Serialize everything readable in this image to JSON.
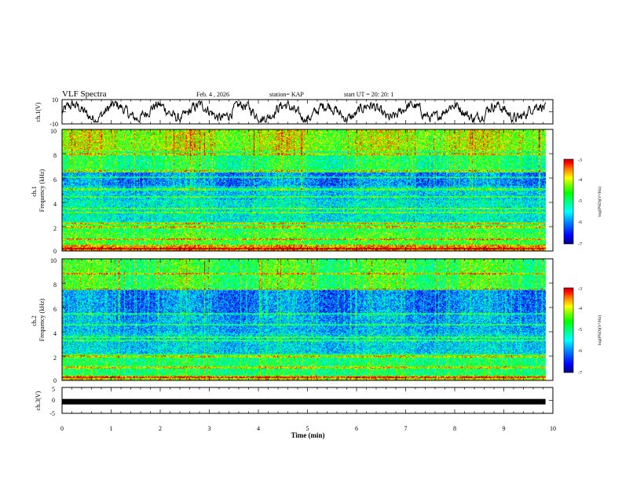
{
  "header": {
    "title": "VLF Spectra",
    "date": "Feb. 4 , 2026",
    "station": "station= KAP",
    "start_time": "start  UT =   20: 20: 1"
  },
  "colors": {
    "colormap": [
      "#000080",
      "#0000ff",
      "#0080ff",
      "#00ffff",
      "#00ff80",
      "#00ff00",
      "#80ff00",
      "#ffff00",
      "#ff8000",
      "#ff0000",
      "#c00000"
    ],
    "line": "#000000"
  },
  "chart_data": [
    {
      "type": "line",
      "name": "ch1-waveform",
      "ylabel": "ch.1(V)",
      "ylim": [
        -10,
        10
      ],
      "yticks": [
        "10",
        "-10"
      ],
      "xlim": [
        0,
        10
      ],
      "note": "noisy oscillating waveform, amplitude roughly between -7 and 7 V, trace ends near 9.8 min"
    },
    {
      "type": "heatmap",
      "name": "ch1-spectrogram",
      "ylabel": "ch.1\nFrequency (kHz)",
      "ylim": [
        0,
        10
      ],
      "yticks": [
        "0",
        "2",
        "4",
        "6",
        "8",
        "10"
      ],
      "xlim": [
        0,
        10
      ],
      "data_extent_min": 9.85,
      "colorbar": {
        "label": "log(PSD)(V²/Hz)",
        "ticks": [
          "-3",
          "-4",
          "-5",
          "-6",
          "-7"
        ],
        "range": [
          -7,
          -3
        ]
      },
      "bands": [
        {
          "f_low": 0,
          "f_high": 0.4,
          "level": -3.6
        },
        {
          "f_low": 0.4,
          "f_high": 1.6,
          "level": -4.6
        },
        {
          "f_low": 1.6,
          "f_high": 2.4,
          "level": -4.8
        },
        {
          "f_low": 2.4,
          "f_high": 4.2,
          "level": -5.4
        },
        {
          "f_low": 4.2,
          "f_high": 5.4,
          "level": -5.6
        },
        {
          "f_low": 5.4,
          "f_high": 6.5,
          "level": -6.0
        },
        {
          "f_low": 6.5,
          "f_high": 8.2,
          "level": -4.9
        },
        {
          "f_low": 8.2,
          "f_high": 10,
          "level": -4.2
        }
      ],
      "lines_khz": [
        0.2,
        0.5,
        1.0,
        2.0,
        2.3,
        3.2,
        3.5,
        4.5,
        5.1,
        6.1,
        6.6,
        8.0
      ]
    },
    {
      "type": "heatmap",
      "name": "ch2-spectrogram",
      "ylabel": "ch.2\nFrequency (kHz)",
      "ylim": [
        0,
        10
      ],
      "yticks": [
        "0",
        "2",
        "4",
        "6",
        "8",
        "10"
      ],
      "xlim": [
        0,
        10
      ],
      "data_extent_min": 9.85,
      "colorbar": {
        "label": "log(PSD)(V²/Hz)",
        "ticks": [
          "-3",
          "-4",
          "-5",
          "-6",
          "-7"
        ],
        "range": [
          -7,
          -3
        ]
      },
      "bands": [
        {
          "f_low": 0,
          "f_high": 0.4,
          "level": -4.0
        },
        {
          "f_low": 0.4,
          "f_high": 2.2,
          "level": -4.9
        },
        {
          "f_low": 2.2,
          "f_high": 4.0,
          "level": -5.6
        },
        {
          "f_low": 4.0,
          "f_high": 5.5,
          "level": -5.8
        },
        {
          "f_low": 5.5,
          "f_high": 7.5,
          "level": -6.0
        },
        {
          "f_low": 7.5,
          "f_high": 10,
          "level": -4.7
        }
      ],
      "lines_khz": [
        0.3,
        1.1,
        2.0,
        3.3,
        3.6,
        4.6,
        5.5,
        7.5,
        8.8
      ]
    },
    {
      "type": "line",
      "name": "ch3-signal",
      "ylabel": "ch.3(V)",
      "ylim": [
        -5,
        5
      ],
      "yticks": [
        "5",
        "0",
        "-5"
      ],
      "xlim": [
        0,
        10
      ],
      "constant_value": -0.5,
      "note": "thick flat band near -0.5 V across 0 to 9.85 min"
    },
    {
      "type": "axis",
      "name": "time-axis",
      "xlabel": "Time  (min)",
      "xticks": [
        "0",
        "1",
        "2",
        "3",
        "4",
        "5",
        "6",
        "7",
        "8",
        "9",
        "10"
      ]
    }
  ]
}
